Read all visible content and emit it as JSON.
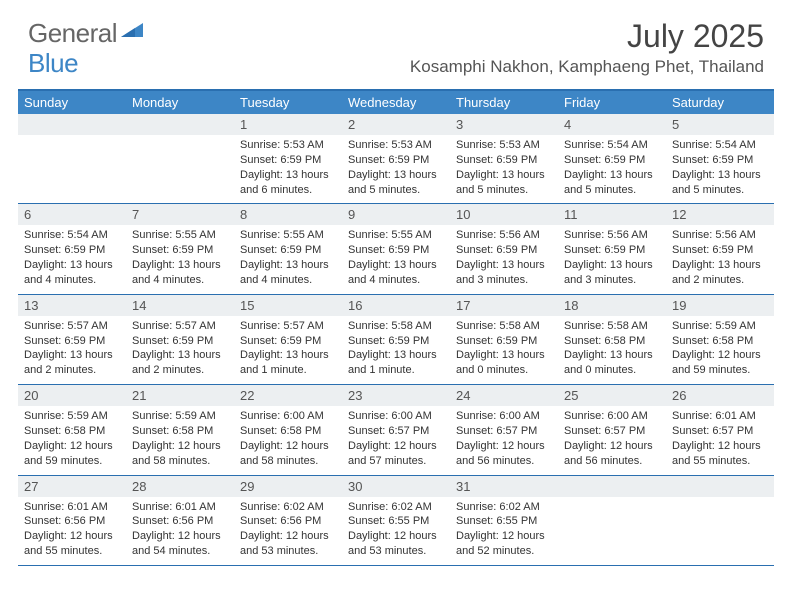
{
  "logo": {
    "general": "General",
    "blue": "Blue"
  },
  "title": "July 2025",
  "location": "Kosamphi Nakhon, Kamphaeng Phet, Thailand",
  "colors": {
    "header_bg": "#3d86c6",
    "border": "#2a6fb0",
    "daynum_bg": "#eceff1",
    "text": "#333333",
    "title_text": "#444444"
  },
  "dayNames": [
    "Sunday",
    "Monday",
    "Tuesday",
    "Wednesday",
    "Thursday",
    "Friday",
    "Saturday"
  ],
  "weeks": [
    [
      {
        "n": "",
        "sr": "",
        "ss": "",
        "dl": ""
      },
      {
        "n": "",
        "sr": "",
        "ss": "",
        "dl": ""
      },
      {
        "n": "1",
        "sr": "Sunrise: 5:53 AM",
        "ss": "Sunset: 6:59 PM",
        "dl": "Daylight: 13 hours and 6 minutes."
      },
      {
        "n": "2",
        "sr": "Sunrise: 5:53 AM",
        "ss": "Sunset: 6:59 PM",
        "dl": "Daylight: 13 hours and 5 minutes."
      },
      {
        "n": "3",
        "sr": "Sunrise: 5:53 AM",
        "ss": "Sunset: 6:59 PM",
        "dl": "Daylight: 13 hours and 5 minutes."
      },
      {
        "n": "4",
        "sr": "Sunrise: 5:54 AM",
        "ss": "Sunset: 6:59 PM",
        "dl": "Daylight: 13 hours and 5 minutes."
      },
      {
        "n": "5",
        "sr": "Sunrise: 5:54 AM",
        "ss": "Sunset: 6:59 PM",
        "dl": "Daylight: 13 hours and 5 minutes."
      }
    ],
    [
      {
        "n": "6",
        "sr": "Sunrise: 5:54 AM",
        "ss": "Sunset: 6:59 PM",
        "dl": "Daylight: 13 hours and 4 minutes."
      },
      {
        "n": "7",
        "sr": "Sunrise: 5:55 AM",
        "ss": "Sunset: 6:59 PM",
        "dl": "Daylight: 13 hours and 4 minutes."
      },
      {
        "n": "8",
        "sr": "Sunrise: 5:55 AM",
        "ss": "Sunset: 6:59 PM",
        "dl": "Daylight: 13 hours and 4 minutes."
      },
      {
        "n": "9",
        "sr": "Sunrise: 5:55 AM",
        "ss": "Sunset: 6:59 PM",
        "dl": "Daylight: 13 hours and 4 minutes."
      },
      {
        "n": "10",
        "sr": "Sunrise: 5:56 AM",
        "ss": "Sunset: 6:59 PM",
        "dl": "Daylight: 13 hours and 3 minutes."
      },
      {
        "n": "11",
        "sr": "Sunrise: 5:56 AM",
        "ss": "Sunset: 6:59 PM",
        "dl": "Daylight: 13 hours and 3 minutes."
      },
      {
        "n": "12",
        "sr": "Sunrise: 5:56 AM",
        "ss": "Sunset: 6:59 PM",
        "dl": "Daylight: 13 hours and 2 minutes."
      }
    ],
    [
      {
        "n": "13",
        "sr": "Sunrise: 5:57 AM",
        "ss": "Sunset: 6:59 PM",
        "dl": "Daylight: 13 hours and 2 minutes."
      },
      {
        "n": "14",
        "sr": "Sunrise: 5:57 AM",
        "ss": "Sunset: 6:59 PM",
        "dl": "Daylight: 13 hours and 2 minutes."
      },
      {
        "n": "15",
        "sr": "Sunrise: 5:57 AM",
        "ss": "Sunset: 6:59 PM",
        "dl": "Daylight: 13 hours and 1 minute."
      },
      {
        "n": "16",
        "sr": "Sunrise: 5:58 AM",
        "ss": "Sunset: 6:59 PM",
        "dl": "Daylight: 13 hours and 1 minute."
      },
      {
        "n": "17",
        "sr": "Sunrise: 5:58 AM",
        "ss": "Sunset: 6:59 PM",
        "dl": "Daylight: 13 hours and 0 minutes."
      },
      {
        "n": "18",
        "sr": "Sunrise: 5:58 AM",
        "ss": "Sunset: 6:58 PM",
        "dl": "Daylight: 13 hours and 0 minutes."
      },
      {
        "n": "19",
        "sr": "Sunrise: 5:59 AM",
        "ss": "Sunset: 6:58 PM",
        "dl": "Daylight: 12 hours and 59 minutes."
      }
    ],
    [
      {
        "n": "20",
        "sr": "Sunrise: 5:59 AM",
        "ss": "Sunset: 6:58 PM",
        "dl": "Daylight: 12 hours and 59 minutes."
      },
      {
        "n": "21",
        "sr": "Sunrise: 5:59 AM",
        "ss": "Sunset: 6:58 PM",
        "dl": "Daylight: 12 hours and 58 minutes."
      },
      {
        "n": "22",
        "sr": "Sunrise: 6:00 AM",
        "ss": "Sunset: 6:58 PM",
        "dl": "Daylight: 12 hours and 58 minutes."
      },
      {
        "n": "23",
        "sr": "Sunrise: 6:00 AM",
        "ss": "Sunset: 6:57 PM",
        "dl": "Daylight: 12 hours and 57 minutes."
      },
      {
        "n": "24",
        "sr": "Sunrise: 6:00 AM",
        "ss": "Sunset: 6:57 PM",
        "dl": "Daylight: 12 hours and 56 minutes."
      },
      {
        "n": "25",
        "sr": "Sunrise: 6:00 AM",
        "ss": "Sunset: 6:57 PM",
        "dl": "Daylight: 12 hours and 56 minutes."
      },
      {
        "n": "26",
        "sr": "Sunrise: 6:01 AM",
        "ss": "Sunset: 6:57 PM",
        "dl": "Daylight: 12 hours and 55 minutes."
      }
    ],
    [
      {
        "n": "27",
        "sr": "Sunrise: 6:01 AM",
        "ss": "Sunset: 6:56 PM",
        "dl": "Daylight: 12 hours and 55 minutes."
      },
      {
        "n": "28",
        "sr": "Sunrise: 6:01 AM",
        "ss": "Sunset: 6:56 PM",
        "dl": "Daylight: 12 hours and 54 minutes."
      },
      {
        "n": "29",
        "sr": "Sunrise: 6:02 AM",
        "ss": "Sunset: 6:56 PM",
        "dl": "Daylight: 12 hours and 53 minutes."
      },
      {
        "n": "30",
        "sr": "Sunrise: 6:02 AM",
        "ss": "Sunset: 6:55 PM",
        "dl": "Daylight: 12 hours and 53 minutes."
      },
      {
        "n": "31",
        "sr": "Sunrise: 6:02 AM",
        "ss": "Sunset: 6:55 PM",
        "dl": "Daylight: 12 hours and 52 minutes."
      },
      {
        "n": "",
        "sr": "",
        "ss": "",
        "dl": ""
      },
      {
        "n": "",
        "sr": "",
        "ss": "",
        "dl": ""
      }
    ]
  ]
}
